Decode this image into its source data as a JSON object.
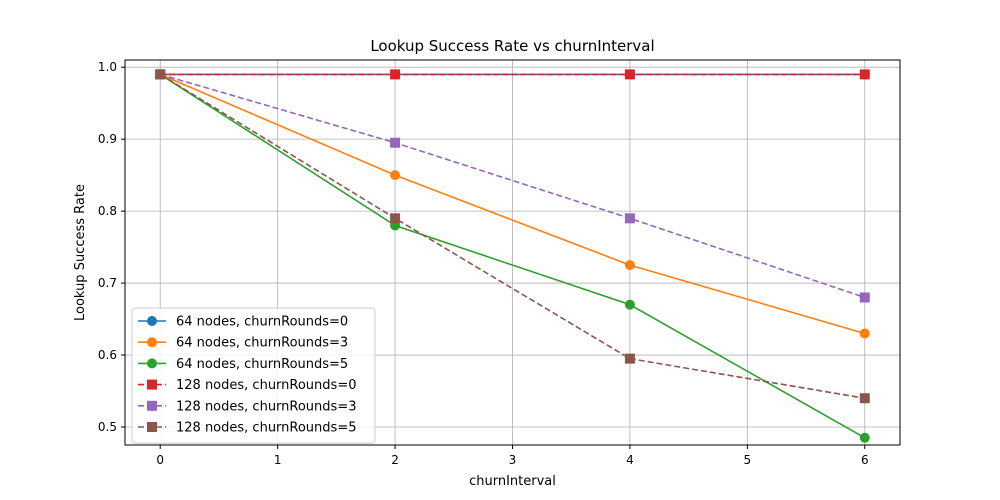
{
  "chart_data": {
    "type": "line",
    "title": "Lookup Success Rate vs churnInterval",
    "xlabel": "churnInterval",
    "ylabel": "Lookup Success Rate",
    "xlim": [
      -0.3,
      6.3
    ],
    "ylim": [
      0.475,
      1.01
    ],
    "x_ticks": [
      0,
      1,
      2,
      3,
      4,
      5,
      6
    ],
    "y_ticks": [
      0.5,
      0.6,
      0.7,
      0.8,
      0.9,
      1.0
    ],
    "grid": true,
    "legend_position": "lower-left",
    "series": [
      {
        "name": "64 nodes, churnRounds=0",
        "color": "#1f77b4",
        "marker": "circle",
        "linestyle": "solid",
        "x": [
          0,
          2,
          4,
          6
        ],
        "y": [
          0.99,
          0.99,
          0.99,
          0.99
        ]
      },
      {
        "name": "64 nodes, churnRounds=3",
        "color": "#ff7f0e",
        "marker": "circle",
        "linestyle": "solid",
        "x": [
          0,
          2,
          4,
          6
        ],
        "y": [
          0.99,
          0.85,
          0.725,
          0.63
        ]
      },
      {
        "name": "64 nodes, churnRounds=5",
        "color": "#2ca02c",
        "marker": "circle",
        "linestyle": "solid",
        "x": [
          0,
          2,
          4,
          6
        ],
        "y": [
          0.99,
          0.78,
          0.67,
          0.485
        ]
      },
      {
        "name": "128 nodes, churnRounds=0",
        "color": "#d62728",
        "marker": "square",
        "linestyle": "dashed",
        "x": [
          0,
          2,
          4,
          6
        ],
        "y": [
          0.99,
          0.99,
          0.99,
          0.99
        ]
      },
      {
        "name": "128 nodes, churnRounds=3",
        "color": "#9467bd",
        "marker": "square",
        "linestyle": "dashed",
        "x": [
          0,
          2,
          4,
          6
        ],
        "y": [
          0.99,
          0.895,
          0.79,
          0.68
        ]
      },
      {
        "name": "128 nodes, churnRounds=5",
        "color": "#8c564b",
        "marker": "square",
        "linestyle": "dashed",
        "x": [
          0,
          2,
          4,
          6
        ],
        "y": [
          0.99,
          0.79,
          0.595,
          0.54
        ]
      }
    ]
  }
}
